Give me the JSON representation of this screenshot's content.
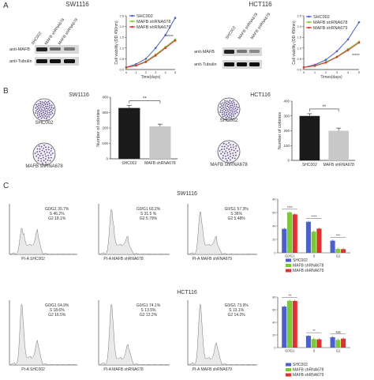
{
  "panel_labels": {
    "a": "A",
    "b": "B",
    "c": "C"
  },
  "row_a": {
    "left_title": "SW1116",
    "right_title": "HCT116",
    "left_blot": {
      "lanes": [
        "SHC002",
        "MAFB shRNA678",
        "MAFB shRNA679"
      ],
      "rows": [
        "anti-MAFB",
        "anti-Tubulin"
      ]
    },
    "right_blot": {
      "lanes": [
        "SHC002",
        "MAFB shRNA678",
        "MAFB shRNA679"
      ],
      "rows": [
        "anti-MAFB",
        "anti-Tubulin"
      ]
    },
    "left_sig": "*****",
    "right_sig": "*****"
  },
  "row_b": {
    "left_title": "SW1116",
    "right_title": "HCT116",
    "left_dish_labels": [
      "SHC002",
      "MAFB shRNA678"
    ],
    "right_dish_labels": [
      "SHC002",
      "MAFB shRNA678"
    ],
    "left_sig": "**",
    "right_sig": "**"
  },
  "row_c": {
    "top_title": "SW1116",
    "bottom_title": "HCT116",
    "top_hists": [
      {
        "xlabel": "PI-A  SHC002",
        "lines": [
          "G0/G1 35.7%",
          "S 46.2%",
          "G2 18.1%"
        ]
      },
      {
        "xlabel": "PI-A   MAFB shRNA678",
        "lines": [
          "G0/G1 60.2%",
          "S 31.5 %",
          "G2 5.79%"
        ]
      },
      {
        "xlabel": "PI-A   MAFB shRNA679",
        "lines": [
          "G0/G1 57.3%",
          "S 36%",
          "G2 5.48%"
        ]
      }
    ],
    "bottom_hists": [
      {
        "xlabel": "PI-A  SHC002",
        "lines": [
          "G0/G1 64.9%",
          "S 18.6%",
          "G2 16.5%"
        ]
      },
      {
        "xlabel": "PI-A   MAFB shRNA678",
        "lines": [
          "G0/G1 74.1%",
          "S 13.5%",
          "G2 12.2%"
        ]
      },
      {
        "xlabel": "PI-A   MAFB shRNA679",
        "lines": [
          "G0/G1 73.9%",
          "S 13.1%",
          "G2 14.2%"
        ]
      }
    ],
    "top_sigs": [
      "****",
      "****",
      "***"
    ],
    "bottom_sigs": [
      "**",
      "**",
      "NS"
    ]
  },
  "colors": {
    "shc": "#4a5fd0",
    "s678": "#7acc2e",
    "s679": "#e03030"
  },
  "chart_data": [
    {
      "type": "line",
      "panel": "A-SW1116",
      "xlabel": "Time(days)",
      "ylabel": "Cell viability (OD 450nm)",
      "x": [
        0,
        1,
        2,
        3,
        4,
        5
      ],
      "xlim": [
        0,
        5
      ],
      "ylim": [
        0,
        2.5
      ],
      "xticks": [
        "0",
        "1",
        "2",
        "3",
        "4",
        "5"
      ],
      "yticks": [
        "0.0",
        "0.5",
        "1.0",
        "1.5",
        "2.0",
        "2.5"
      ],
      "series": [
        {
          "name": "SHC002",
          "values": [
            0.1,
            0.25,
            0.5,
            1.0,
            1.6,
            2.4
          ]
        },
        {
          "name": "MAFB shRNA678",
          "values": [
            0.1,
            0.2,
            0.38,
            0.7,
            1.05,
            1.4
          ]
        },
        {
          "name": "MAFB shRNA679",
          "values": [
            0.1,
            0.18,
            0.35,
            0.65,
            1.0,
            1.35
          ]
        }
      ]
    },
    {
      "type": "line",
      "panel": "A-HCT116",
      "xlabel": "Times(days)",
      "ylabel": "Cell viability (OD 450nm)",
      "x": [
        0,
        1,
        2,
        3,
        4,
        5
      ],
      "xlim": [
        0,
        5
      ],
      "ylim": [
        0,
        2.5
      ],
      "xticks": [
        "0",
        "1",
        "2",
        "3",
        "4",
        "5"
      ],
      "yticks": [
        "0.0",
        "0.5",
        "1.0",
        "1.5",
        "2.0",
        "2.5"
      ],
      "series": [
        {
          "name": "SHC002",
          "values": [
            0.1,
            0.22,
            0.45,
            0.85,
            1.4,
            2.2
          ]
        },
        {
          "name": "MAFB shRNA678",
          "values": [
            0.1,
            0.18,
            0.35,
            0.6,
            0.95,
            1.3
          ]
        },
        {
          "name": "MAFB shRNA679",
          "values": [
            0.1,
            0.17,
            0.32,
            0.58,
            0.9,
            1.25
          ]
        }
      ]
    },
    {
      "type": "bar",
      "panel": "B-SW1116",
      "ylabel": "Number of colonies",
      "categories": [
        "SHC002",
        "MAFB shRNA678"
      ],
      "values": [
        330,
        210
      ],
      "errors": [
        15,
        15
      ],
      "ylim": [
        0,
        400
      ],
      "yticks": [
        "0",
        "100",
        "200",
        "300",
        "400"
      ]
    },
    {
      "type": "bar",
      "panel": "B-HCT116",
      "ylabel": "Number of colonies",
      "categories": [
        "SHC002",
        "MAFB shRNA678"
      ],
      "values": [
        300,
        200
      ],
      "errors": [
        15,
        18
      ],
      "ylim": [
        0,
        400
      ],
      "yticks": [
        "0",
        "100",
        "200",
        "300",
        "400"
      ]
    },
    {
      "type": "bar",
      "panel": "C-SW1116",
      "categories": [
        "G0/G1",
        "S",
        "G2"
      ],
      "ylim": [
        0,
        80
      ],
      "yticks": [
        "0",
        "20",
        "40",
        "60",
        "80"
      ],
      "series": [
        {
          "name": "SHC002",
          "values": [
            35.7,
            46.2,
            18.1
          ]
        },
        {
          "name": "MAFB shRNA678",
          "values": [
            60.2,
            31.5,
            5.79
          ]
        },
        {
          "name": "MAFB shRNA679",
          "values": [
            57.3,
            36.0,
            5.48
          ]
        }
      ]
    },
    {
      "type": "bar",
      "panel": "C-HCT116",
      "categories": [
        "G0/G1",
        "S",
        "G2"
      ],
      "ylim": [
        0,
        80
      ],
      "yticks": [
        "0",
        "20",
        "40",
        "60",
        "80"
      ],
      "series": [
        {
          "name": "SHC002",
          "values": [
            64.9,
            18.6,
            16.5
          ]
        },
        {
          "name": "MAFB shRNA678",
          "values": [
            74.1,
            13.5,
            12.2
          ]
        },
        {
          "name": "MAFB shRNA679",
          "values": [
            73.9,
            13.1,
            14.2
          ]
        }
      ]
    }
  ]
}
